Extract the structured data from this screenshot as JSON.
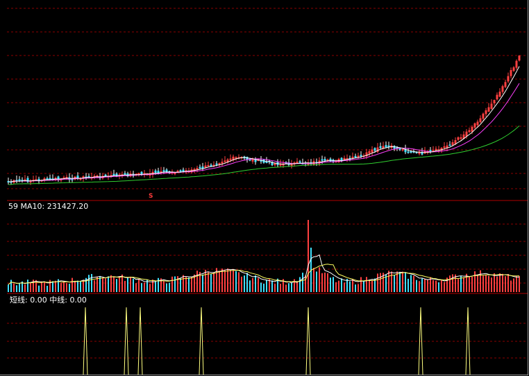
{
  "panels": {
    "volume": {
      "prefix": "59",
      "ma_label": "MA10:",
      "ma_value": "231427.20"
    },
    "indicator": {
      "short_label": "短线:",
      "short_value": "0.00",
      "mid_label": "中线:",
      "mid_value": "0.00"
    }
  },
  "marker": {
    "text": "S",
    "color": "#ff3b3b"
  },
  "colors": {
    "up": "#ff4040",
    "down": "#40e0ff",
    "ma_white": "#ffffff",
    "ma_magenta": "#ff40ff",
    "ma_green": "#30d030",
    "grid": "#8b0000",
    "separator": "#b00000",
    "spike": "#ffff80"
  },
  "chart_data": [
    {
      "type": "candlestick",
      "panel": "price",
      "series": [
        {
          "name": "",
          "color": "#ffffff"
        },
        {
          "name": "",
          "color": "#ff40ff"
        },
        {
          "name": "",
          "color": "#30d030"
        }
      ]
    },
    {
      "type": "bar",
      "panel": "volume",
      "series": [
        {
          "name": "MA10",
          "value": 231427.2
        }
      ]
    },
    {
      "type": "line",
      "panel": "indicator",
      "series": [
        {
          "name": "短线",
          "value": 0.0
        },
        {
          "name": "中线",
          "value": 0.0
        }
      ]
    }
  ]
}
